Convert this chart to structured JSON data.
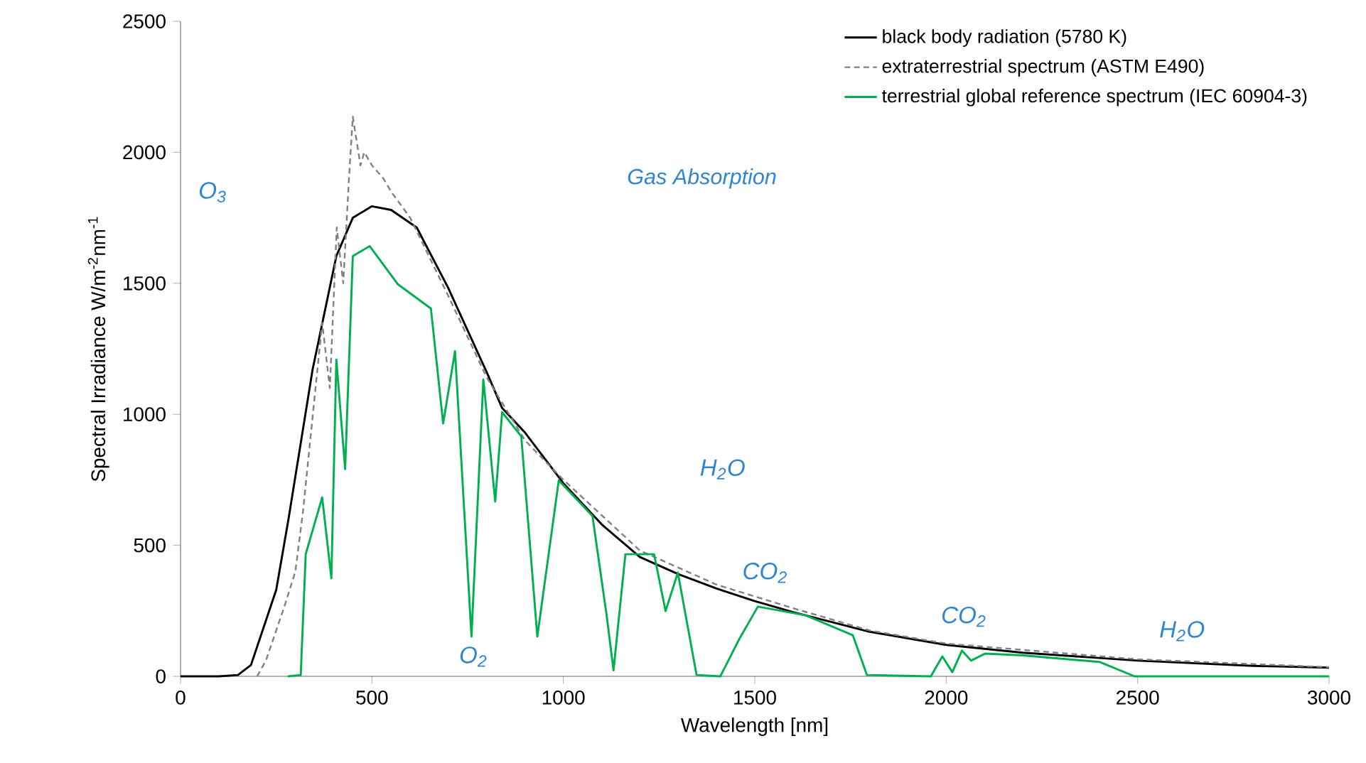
{
  "chart_data": {
    "type": "line",
    "xlabel": "Wavelength  [nm]",
    "ylabel": "Spectral Irradiance W/m$^{-2}$nm$^{-1}$",
    "xlim": [
      0,
      3000
    ],
    "ylim": [
      0,
      2500
    ],
    "xticks": [
      0,
      500,
      1000,
      1500,
      2000,
      2500,
      3000
    ],
    "yticks": [
      0,
      500,
      1000,
      1500,
      2000,
      2500
    ],
    "grid": false,
    "legend": "top right",
    "marker": "none",
    "series": [
      {
        "name": "black body radiation (5780 K)",
        "color": "#000000",
        "line_style": "solid",
        "x": [
          0,
          100,
          150,
          184,
          250,
          282,
          345,
          407,
          450,
          500,
          550,
          617,
          700,
          717,
          800,
          840,
          900,
          1000,
          1100,
          1200,
          1300,
          1400,
          1500,
          1600,
          1800,
          2000,
          2200,
          2500,
          2800,
          3000
        ],
        "values": [
          0,
          0,
          5,
          43,
          330,
          600,
          1171,
          1604,
          1750,
          1794,
          1780,
          1713,
          1480,
          1425,
          1160,
          1024,
          930,
          737,
          580,
          455,
          390,
          335,
          287,
          245,
          170,
          120,
          90,
          60,
          40,
          33
        ]
      },
      {
        "name": "extraterrestrial spectrum (ASTM E490)",
        "color": "#808080",
        "line_style": "dashed",
        "x": [
          200,
          223,
          271,
          300,
          320,
          345,
          370,
          390,
          408,
          425,
          440,
          450,
          470,
          480,
          500,
          530,
          550,
          600,
          700,
          800,
          900,
          1000,
          1200,
          1400,
          1600,
          1800,
          2000,
          2500,
          3000
        ],
        "values": [
          0,
          60,
          265,
          400,
          630,
          990,
          1350,
          1100,
          1713,
          1500,
          1900,
          2136,
          1950,
          2000,
          1950,
          1900,
          1850,
          1750,
          1450,
          1140,
          900,
          750,
          480,
          350,
          260,
          175,
          125,
          65,
          35
        ]
      },
      {
        "name": "terrestrial global reference spectrum (IEC 60904-3)",
        "color": "#00b050",
        "line_style": "solid",
        "x": [
          280,
          314,
          327,
          370,
          394,
          407,
          430,
          450,
          494,
          568,
          654,
          686,
          717,
          760,
          791,
          822,
          840,
          890,
          932,
          988,
          1076,
          1113,
          1131,
          1162,
          1237,
          1267,
          1299,
          1348,
          1410,
          1459,
          1508,
          1633,
          1756,
          1793,
          1960,
          1979,
          1990,
          2016,
          2041,
          2065,
          2102,
          2200,
          2400,
          2492,
          3000
        ],
        "values": [
          0,
          5,
          466,
          683,
          374,
          1209,
          791,
          1604,
          1642,
          1496,
          1404,
          965,
          1241,
          152,
          1133,
          667,
          1008,
          916,
          152,
          748,
          612,
          233,
          23,
          466,
          466,
          249,
          396,
          5,
          0,
          141,
          266,
          233,
          157,
          5,
          0,
          49,
          76,
          16,
          98,
          60,
          87,
          80,
          55,
          0,
          0
        ]
      }
    ],
    "annotations": [
      "Gas Absorption",
      "O$_{3}$",
      "O$_{2}$",
      "H$_{2}$O",
      "CO$_{2}$",
      "CO$_{2}$",
      "H$_{2}$O"
    ]
  }
}
